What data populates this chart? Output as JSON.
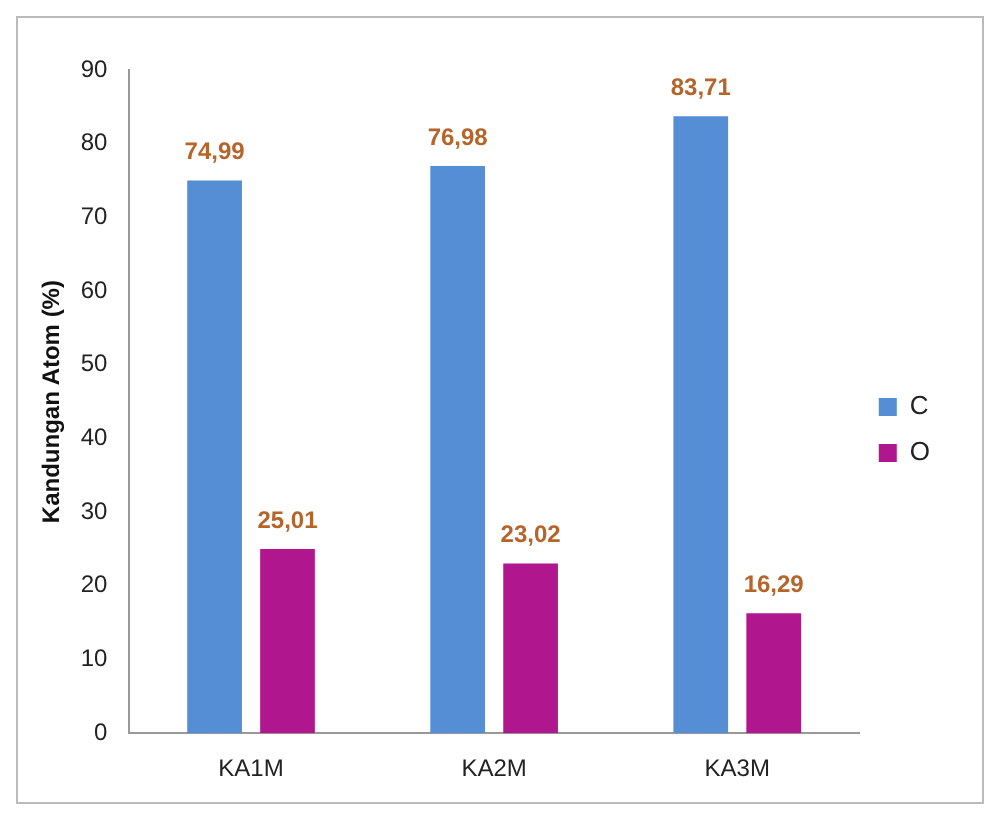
{
  "chart_data": {
    "type": "bar",
    "ylabel": "Kandungan Atom (%)",
    "categories": [
      "KA1M",
      "KA2M",
      "KA3M"
    ],
    "series": [
      {
        "name": "C",
        "color": "#558ed5",
        "values": [
          74.99,
          76.98,
          83.71
        ],
        "value_labels": [
          "74,99",
          "76,98",
          "83,71"
        ]
      },
      {
        "name": "O",
        "color": "#b0178f",
        "values": [
          25.01,
          23.02,
          16.29
        ],
        "value_labels": [
          "25,01",
          "23,02",
          "16,29"
        ]
      }
    ],
    "ylim": [
      0,
      90
    ],
    "yticks": [
      0,
      10,
      20,
      30,
      40,
      50,
      60,
      70,
      80,
      90
    ],
    "grid": false,
    "legend": "right"
  }
}
